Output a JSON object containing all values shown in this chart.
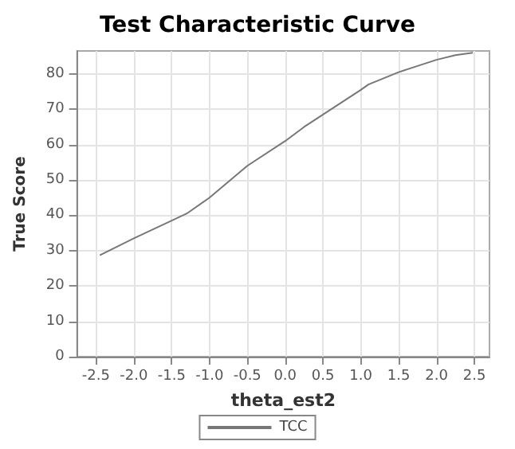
{
  "chart_data": {
    "type": "line",
    "title": "Test Characteristic Curve",
    "xlabel": "theta_est2",
    "ylabel": "True Score",
    "x": [
      -2.45,
      -2.0,
      -1.5,
      -1.3,
      -1.0,
      -0.5,
      0,
      0.25,
      0.5,
      1.0,
      1.1,
      1.5,
      2.0,
      2.25,
      2.48
    ],
    "series": [
      {
        "name": "TCC",
        "color": "#777777",
        "values": [
          28.7,
          33.5,
          38.5,
          40.5,
          45,
          54,
          61,
          65,
          68.5,
          75.5,
          77,
          80.5,
          84,
          85.3,
          86
        ]
      }
    ],
    "xlim": [
      -2.75,
      2.7
    ],
    "xticks": [
      -2.5,
      {
        "value": -2,
        "label": "-2.0"
      },
      -1.5,
      {
        "value": -1,
        "label": "-1.0"
      },
      -0.5,
      {
        "value": 0,
        "label": "0.0"
      },
      0.5,
      {
        "value": 1,
        "label": "1.0"
      },
      1.5,
      {
        "value": 2,
        "label": "2.0"
      },
      2.5
    ],
    "ylim": [
      0,
      86.5
    ],
    "yticks": [
      0,
      10,
      20,
      30,
      40,
      50,
      60,
      70,
      80
    ],
    "grid": true,
    "legend": "bottom",
    "marker": "none",
    "line_style": "solid"
  }
}
